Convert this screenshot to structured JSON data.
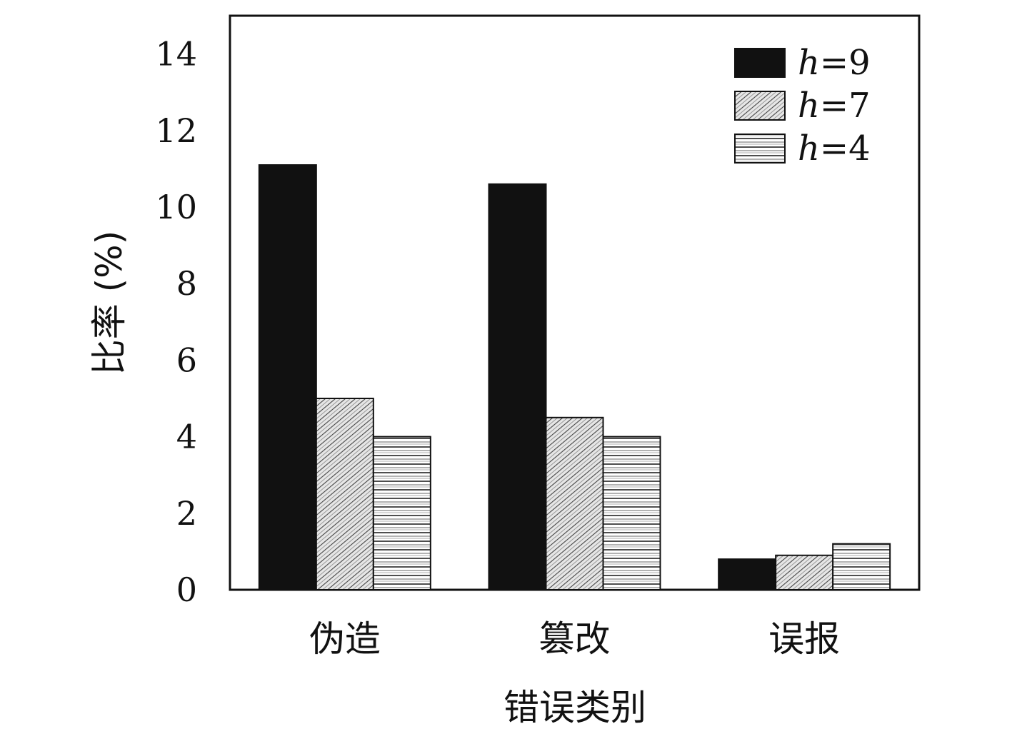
{
  "chart_data": {
    "type": "bar",
    "title": "",
    "xlabel": "错误类别",
    "ylabel": "比率 (%)",
    "categories": [
      "伪造",
      "篡改",
      "误报"
    ],
    "ylim": [
      0,
      15
    ],
    "yticks": [
      0,
      2,
      4,
      6,
      8,
      10,
      12,
      14
    ],
    "grid": false,
    "legend_position": "top-right",
    "series": [
      {
        "name": "h=9",
        "legend_italic": "h",
        "legend_rest": "=9",
        "pattern": "solid",
        "color": "#111111",
        "values": [
          11.1,
          10.6,
          0.8
        ]
      },
      {
        "name": "h=7",
        "legend_italic": "h",
        "legend_rest": "=7",
        "pattern": "diagonal",
        "color": "#d9d9d9",
        "values": [
          5.0,
          4.5,
          0.9
        ]
      },
      {
        "name": "h=4",
        "legend_italic": "h",
        "legend_rest": "=4",
        "pattern": "horizontal",
        "color": "#ffffff",
        "values": [
          4.0,
          4.0,
          1.2
        ]
      }
    ]
  }
}
